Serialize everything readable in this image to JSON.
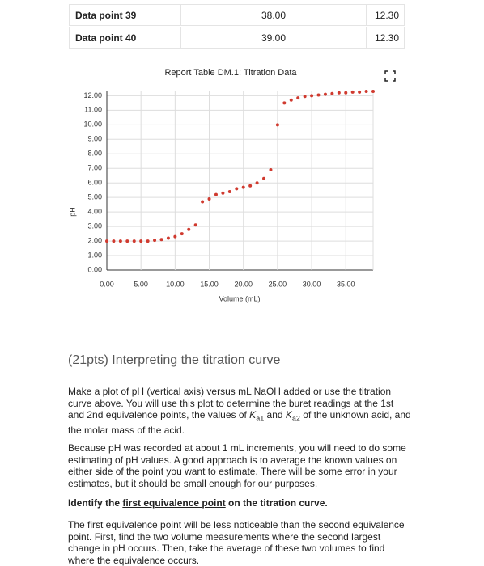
{
  "table": {
    "rows": [
      [
        "Data point 39",
        "38.00",
        "12.30"
      ],
      [
        "Data point 40",
        "39.00",
        "12.30"
      ]
    ]
  },
  "chart_data": {
    "type": "scatter",
    "title": "Report Table DM.1: Titration Data",
    "x_label": "Volume (mL)",
    "y_label": "pH",
    "color": "#d03a2f",
    "grid": true,
    "x": [
      0,
      1,
      2,
      3,
      4,
      5,
      6,
      7,
      8,
      9,
      10,
      11,
      12,
      13,
      14,
      15,
      16,
      17,
      18,
      19,
      20,
      21,
      22,
      23,
      24,
      25,
      26,
      27,
      28,
      29,
      30,
      31,
      32,
      33,
      34,
      35,
      36,
      37,
      38,
      39
    ],
    "values": [
      2.0,
      2.0,
      2.0,
      2.0,
      2.0,
      2.0,
      2.0,
      2.05,
      2.1,
      2.2,
      2.3,
      2.5,
      2.8,
      3.1,
      4.7,
      4.9,
      5.2,
      5.3,
      5.4,
      5.6,
      5.7,
      5.8,
      6.0,
      6.3,
      6.9,
      10.0,
      11.5,
      11.7,
      11.85,
      11.95,
      12.0,
      12.05,
      12.1,
      12.15,
      12.2,
      12.2,
      12.25,
      12.25,
      12.3,
      12.3
    ],
    "xlim": [
      0,
      39
    ],
    "ylim": [
      0,
      12.3
    ],
    "xticks": [
      {
        "value": 0,
        "label": "0.00"
      },
      {
        "value": 5,
        "label": "5.00"
      },
      {
        "value": 10,
        "label": "10.00"
      },
      {
        "value": 15,
        "label": "15.00"
      },
      {
        "value": 20,
        "label": "20.00"
      },
      {
        "value": 25,
        "label": "25.00"
      },
      {
        "value": 30,
        "label": "30.00"
      },
      {
        "value": 35,
        "label": "35.00"
      }
    ],
    "yticks": [
      {
        "value": 0,
        "label": "0.00"
      },
      {
        "value": 1,
        "label": "1.00"
      },
      {
        "value": 2,
        "label": "2.00"
      },
      {
        "value": 3,
        "label": "3.00"
      },
      {
        "value": 4,
        "label": "4.00"
      },
      {
        "value": 5,
        "label": "5.00"
      },
      {
        "value": 6,
        "label": "6.00"
      },
      {
        "value": 7,
        "label": "7.00"
      },
      {
        "value": 8,
        "label": "8.00"
      },
      {
        "value": 9,
        "label": "9.00"
      },
      {
        "value": 10,
        "label": "10.00"
      },
      {
        "value": 11,
        "label": "11.00"
      },
      {
        "value": 12,
        "label": "12.00"
      }
    ]
  },
  "section": {
    "heading": "(21pts) Interpreting the titration curve",
    "p1": [
      "Make a plot of pH (vertical axis) versus mL NaOH added or use the titration curve above. You will use this plot to determine the buret readings at the 1st and 2nd equivalence points, the values of ",
      "K",
      "a1",
      " and ",
      "K",
      "a2",
      " of the unknown acid, and the molar mass of the acid."
    ],
    "p2": "Because pH was recorded at about 1 mL increments, you will need to do some estimating of pH values. A good approach is to average the known values on either side of the point you want to estimate. There will be some error in your estimates, but it should be small enough for our purposes.",
    "p3": [
      "Identify the ",
      "first equivalence point",
      " on the titration curve."
    ],
    "p4": "The first equivalence point will be less noticeable than the second equivalence point. First, find the two volume measurements where the second largest change in pH occurs. Then, take the average of these two volumes to find where the equivalence occurs."
  }
}
